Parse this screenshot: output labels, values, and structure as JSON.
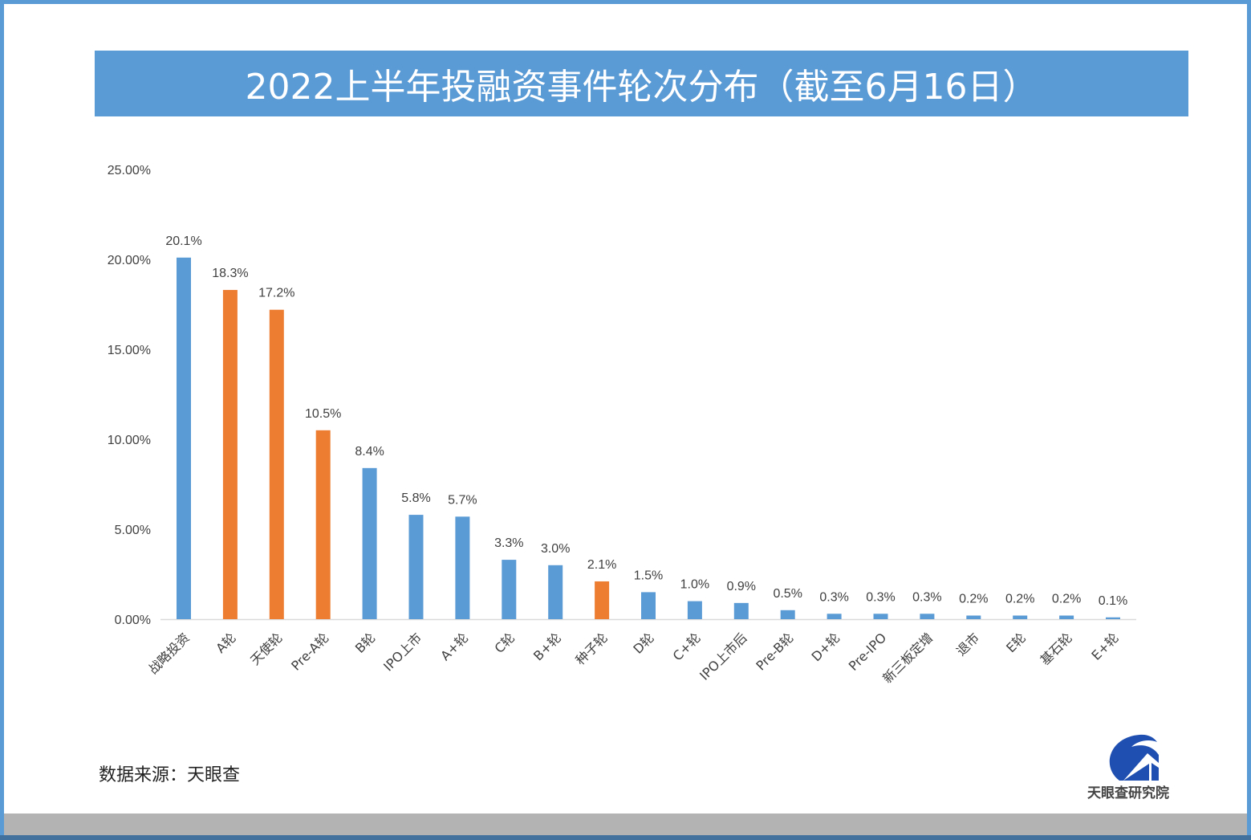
{
  "chart_data": {
    "type": "bar",
    "title": "2022上半年投融资事件轮次分布（截至6月16日）",
    "categories": [
      "战略投资",
      "A轮",
      "天使轮",
      "Pre-A轮",
      "B轮",
      "IPO上市",
      "A+轮",
      "C轮",
      "B+轮",
      "种子轮",
      "D轮",
      "C+轮",
      "IPO上市后",
      "Pre-B轮",
      "D+轮",
      "Pre-IPO",
      "新三板定增",
      "退市",
      "E轮",
      "基石轮",
      "E+轮"
    ],
    "values": [
      20.1,
      18.3,
      17.2,
      10.5,
      8.4,
      5.8,
      5.7,
      3.3,
      3.0,
      2.1,
      1.5,
      1.0,
      0.9,
      0.5,
      0.3,
      0.3,
      0.3,
      0.2,
      0.2,
      0.2,
      0.1
    ],
    "data_labels": [
      "20.1%",
      "18.3%",
      "17.2%",
      "10.5%",
      "8.4%",
      "5.8%",
      "5.7%",
      "3.3%",
      "3.0%",
      "2.1%",
      "1.5%",
      "1.0%",
      "0.9%",
      "0.5%",
      "0.3%",
      "0.3%",
      "0.3%",
      "0.2%",
      "0.2%",
      "0.2%",
      "0.1%"
    ],
    "highlighted": [
      false,
      true,
      true,
      true,
      false,
      false,
      false,
      false,
      false,
      true,
      false,
      false,
      false,
      false,
      false,
      false,
      false,
      false,
      false,
      false,
      false
    ],
    "yticks": [
      "0.00%",
      "5.00%",
      "10.00%",
      "15.00%",
      "20.00%",
      "25.00%"
    ],
    "ylim": [
      0,
      25
    ],
    "grid": false,
    "xlabel": "",
    "ylabel": "",
    "colors": {
      "default": "#5b9bd5",
      "highlight": "#ed7d31"
    }
  },
  "footer": {
    "source": "数据来源：天眼查",
    "logo_text": "天眼查研究院"
  }
}
